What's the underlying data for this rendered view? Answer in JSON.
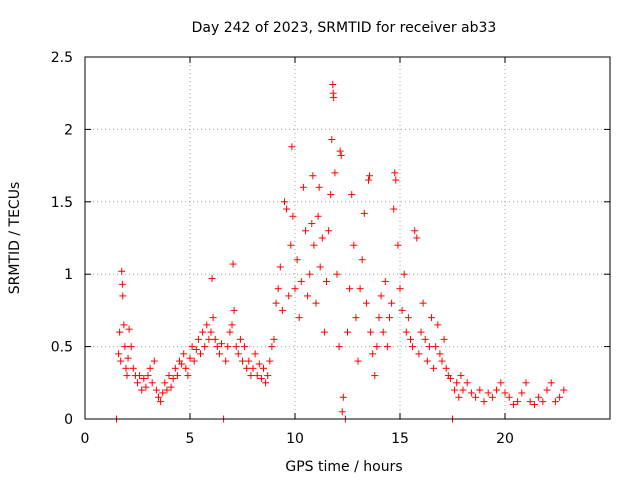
{
  "chart_data": {
    "type": "scatter",
    "title": "Day 242 of 2023, SRMTID for receiver ab33",
    "xlabel": "GPS time / hours",
    "ylabel": "SRMTID / TECUs",
    "xlim": [
      0,
      25
    ],
    "ylim": [
      0,
      2.5
    ],
    "xticks": [
      0,
      5,
      10,
      15,
      20
    ],
    "xtick_labels": [
      "0",
      "5",
      "10",
      "15",
      "20"
    ],
    "yticks": [
      0,
      0.5,
      1,
      1.5,
      2,
      2.5
    ],
    "ytick_labels": [
      "0",
      "0.5",
      "1",
      "1.5",
      "2",
      "2.5"
    ],
    "grid": true,
    "marker": "+",
    "color": "#ff0000",
    "series": [
      {
        "name": "SRMTID",
        "points": [
          [
            1.5,
            0.0
          ],
          [
            1.6,
            0.45
          ],
          [
            1.65,
            0.6
          ],
          [
            1.7,
            0.4
          ],
          [
            1.75,
            1.02
          ],
          [
            1.78,
            0.93
          ],
          [
            1.8,
            0.85
          ],
          [
            1.85,
            0.65
          ],
          [
            1.9,
            0.5
          ],
          [
            1.95,
            0.35
          ],
          [
            2.0,
            0.3
          ],
          [
            2.05,
            0.42
          ],
          [
            2.1,
            0.62
          ],
          [
            2.2,
            0.5
          ],
          [
            2.3,
            0.35
          ],
          [
            2.4,
            0.3
          ],
          [
            2.5,
            0.25
          ],
          [
            2.6,
            0.3
          ],
          [
            2.7,
            0.2
          ],
          [
            2.8,
            0.28
          ],
          [
            2.9,
            0.22
          ],
          [
            3.0,
            0.3
          ],
          [
            3.1,
            0.35
          ],
          [
            3.2,
            0.25
          ],
          [
            3.3,
            0.4
          ],
          [
            3.4,
            0.2
          ],
          [
            3.5,
            0.15
          ],
          [
            3.6,
            0.12
          ],
          [
            3.7,
            0.18
          ],
          [
            3.8,
            0.25
          ],
          [
            3.9,
            0.2
          ],
          [
            4.0,
            0.3
          ],
          [
            4.1,
            0.22
          ],
          [
            4.2,
            0.28
          ],
          [
            4.3,
            0.35
          ],
          [
            4.4,
            0.3
          ],
          [
            4.5,
            0.4
          ],
          [
            4.6,
            0.38
          ],
          [
            4.7,
            0.45
          ],
          [
            4.8,
            0.35
          ],
          [
            4.9,
            0.3
          ],
          [
            5.0,
            0.42
          ],
          [
            5.1,
            0.5
          ],
          [
            5.2,
            0.4
          ],
          [
            5.3,
            0.48
          ],
          [
            5.4,
            0.55
          ],
          [
            5.5,
            0.45
          ],
          [
            5.6,
            0.6
          ],
          [
            5.7,
            0.5
          ],
          [
            5.8,
            0.65
          ],
          [
            5.9,
            0.55
          ],
          [
            6.0,
            0.6
          ],
          [
            6.05,
            0.97
          ],
          [
            6.1,
            0.7
          ],
          [
            6.2,
            0.55
          ],
          [
            6.3,
            0.5
          ],
          [
            6.4,
            0.45
          ],
          [
            6.5,
            0.52
          ],
          [
            6.6,
            0.0
          ],
          [
            6.7,
            0.4
          ],
          [
            6.8,
            0.5
          ],
          [
            6.9,
            0.6
          ],
          [
            7.0,
            0.65
          ],
          [
            7.05,
            1.07
          ],
          [
            7.1,
            0.75
          ],
          [
            7.2,
            0.5
          ],
          [
            7.3,
            0.45
          ],
          [
            7.4,
            0.55
          ],
          [
            7.5,
            0.4
          ],
          [
            7.6,
            0.5
          ],
          [
            7.7,
            0.35
          ],
          [
            7.8,
            0.4
          ],
          [
            7.9,
            0.3
          ],
          [
            8.0,
            0.35
          ],
          [
            8.1,
            0.45
          ],
          [
            8.2,
            0.3
          ],
          [
            8.3,
            0.38
          ],
          [
            8.4,
            0.28
          ],
          [
            8.5,
            0.35
          ],
          [
            8.6,
            0.25
          ],
          [
            8.7,
            0.3
          ],
          [
            8.8,
            0.4
          ],
          [
            8.9,
            0.5
          ],
          [
            9.0,
            0.55
          ],
          [
            9.1,
            0.8
          ],
          [
            9.2,
            0.9
          ],
          [
            9.3,
            1.05
          ],
          [
            9.4,
            0.75
          ],
          [
            9.5,
            1.5
          ],
          [
            9.6,
            1.45
          ],
          [
            9.7,
            0.85
          ],
          [
            9.8,
            1.2
          ],
          [
            9.85,
            1.88
          ],
          [
            9.9,
            1.4
          ],
          [
            10.0,
            0.9
          ],
          [
            10.1,
            1.1
          ],
          [
            10.2,
            0.7
          ],
          [
            10.3,
            0.95
          ],
          [
            10.4,
            1.6
          ],
          [
            10.5,
            1.3
          ],
          [
            10.6,
            0.85
          ],
          [
            10.7,
            1.0
          ],
          [
            10.8,
            1.35
          ],
          [
            10.85,
            1.68
          ],
          [
            10.9,
            1.2
          ],
          [
            11.0,
            0.8
          ],
          [
            11.1,
            1.4
          ],
          [
            11.15,
            1.6
          ],
          [
            11.2,
            1.05
          ],
          [
            11.3,
            1.25
          ],
          [
            11.4,
            0.6
          ],
          [
            11.5,
            0.95
          ],
          [
            11.6,
            1.3
          ],
          [
            11.7,
            1.55
          ],
          [
            11.75,
            1.93
          ],
          [
            11.8,
            2.31
          ],
          [
            11.82,
            2.25
          ],
          [
            11.84,
            2.22
          ],
          [
            11.9,
            1.7
          ],
          [
            12.0,
            1.0
          ],
          [
            12.1,
            0.5
          ],
          [
            12.15,
            1.85
          ],
          [
            12.2,
            1.82
          ],
          [
            12.25,
            0.05
          ],
          [
            12.3,
            0.15
          ],
          [
            12.4,
            0.0
          ],
          [
            12.5,
            0.6
          ],
          [
            12.6,
            0.9
          ],
          [
            12.7,
            1.55
          ],
          [
            12.8,
            1.2
          ],
          [
            12.9,
            0.7
          ],
          [
            13.0,
            0.4
          ],
          [
            13.1,
            0.9
          ],
          [
            13.2,
            1.1
          ],
          [
            13.3,
            1.42
          ],
          [
            13.4,
            0.8
          ],
          [
            13.5,
            1.65
          ],
          [
            13.55,
            1.68
          ],
          [
            13.6,
            0.6
          ],
          [
            13.7,
            0.45
          ],
          [
            13.8,
            0.3
          ],
          [
            13.9,
            0.5
          ],
          [
            14.0,
            0.7
          ],
          [
            14.1,
            0.85
          ],
          [
            14.2,
            0.6
          ],
          [
            14.3,
            0.95
          ],
          [
            14.4,
            0.5
          ],
          [
            14.5,
            0.7
          ],
          [
            14.6,
            0.8
          ],
          [
            14.7,
            1.45
          ],
          [
            14.75,
            1.7
          ],
          [
            14.8,
            1.65
          ],
          [
            14.9,
            1.2
          ],
          [
            15.0,
            0.9
          ],
          [
            15.1,
            0.75
          ],
          [
            15.2,
            1.0
          ],
          [
            15.3,
            0.6
          ],
          [
            15.4,
            0.7
          ],
          [
            15.5,
            0.55
          ],
          [
            15.6,
            0.5
          ],
          [
            15.7,
            1.3
          ],
          [
            15.8,
            1.25
          ],
          [
            15.9,
            0.45
          ],
          [
            16.0,
            0.6
          ],
          [
            16.1,
            0.8
          ],
          [
            16.2,
            0.55
          ],
          [
            16.3,
            0.4
          ],
          [
            16.4,
            0.5
          ],
          [
            16.5,
            0.7
          ],
          [
            16.6,
            0.35
          ],
          [
            16.7,
            0.5
          ],
          [
            16.8,
            0.65
          ],
          [
            16.9,
            0.45
          ],
          [
            17.0,
            0.4
          ],
          [
            17.1,
            0.55
          ],
          [
            17.2,
            0.35
          ],
          [
            17.3,
            0.3
          ],
          [
            17.4,
            0.28
          ],
          [
            17.5,
            0.0
          ],
          [
            17.6,
            0.2
          ],
          [
            17.7,
            0.25
          ],
          [
            17.8,
            0.15
          ],
          [
            17.9,
            0.3
          ],
          [
            18.0,
            0.2
          ],
          [
            18.2,
            0.25
          ],
          [
            18.4,
            0.18
          ],
          [
            18.6,
            0.15
          ],
          [
            18.8,
            0.2
          ],
          [
            19.0,
            0.12
          ],
          [
            19.2,
            0.18
          ],
          [
            19.4,
            0.15
          ],
          [
            19.6,
            0.2
          ],
          [
            19.8,
            0.25
          ],
          [
            20.0,
            0.18
          ],
          [
            20.2,
            0.15
          ],
          [
            20.4,
            0.1
          ],
          [
            20.6,
            0.12
          ],
          [
            20.8,
            0.18
          ],
          [
            21.0,
            0.25
          ],
          [
            21.2,
            0.12
          ],
          [
            21.4,
            0.1
          ],
          [
            21.6,
            0.15
          ],
          [
            21.8,
            0.12
          ],
          [
            22.0,
            0.2
          ],
          [
            22.2,
            0.25
          ],
          [
            22.4,
            0.12
          ],
          [
            22.6,
            0.15
          ],
          [
            22.8,
            0.2
          ]
        ]
      }
    ]
  }
}
